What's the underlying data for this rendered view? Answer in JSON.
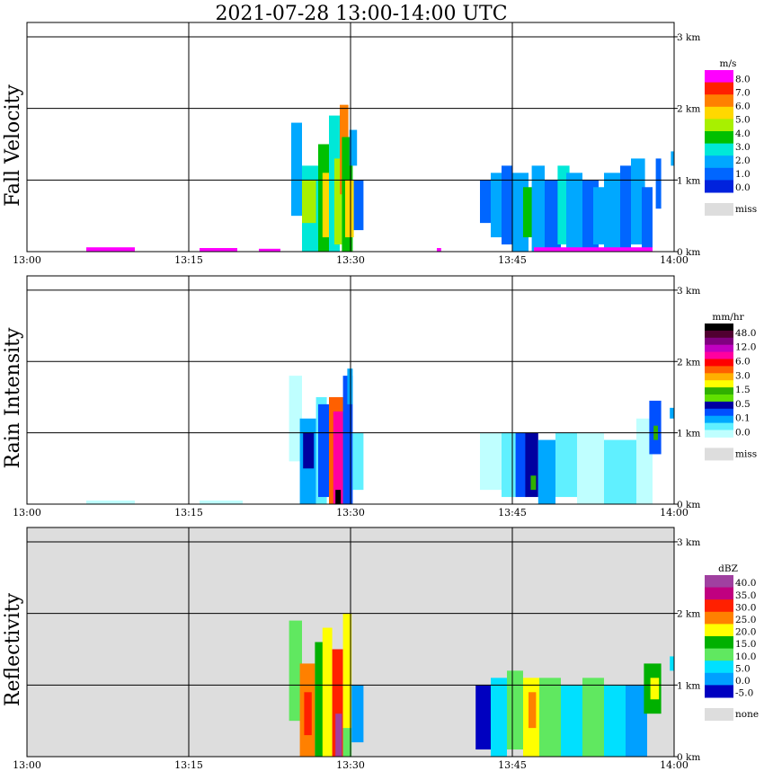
{
  "title": "2021-07-28   13:00-14:00 UTC",
  "colors": {
    "fall": [
      "#0022dd",
      "#0066ff",
      "#00a8ff",
      "#00e8d8",
      "#00c000",
      "#a8f000",
      "#ffd800",
      "#ff8000",
      "#ff2000",
      "#ff00ff"
    ],
    "rain": [
      "#bfffff",
      "#60f0ff",
      "#00a8ff",
      "#0050ff",
      "#0000a0",
      "#60e000",
      "#30b000",
      "#ffff00",
      "#ffb000",
      "#ff6000",
      "#ff0000",
      "#ff00a0",
      "#c000c0",
      "#800080",
      "#500030",
      "#000000"
    ],
    "refl": [
      "#0000c0",
      "#00a0ff",
      "#00e0ff",
      "#60e860",
      "#00b000",
      "#ffff00",
      "#ff8000",
      "#ff2000",
      "#c00080",
      "#a040a0"
    ],
    "miss": "#dddddd"
  },
  "chart_data": [
    {
      "type": "heatmap",
      "name": "fall",
      "ylabel": "Fall Velocity",
      "xlabel": "",
      "x_range_minutes": [
        0,
        60
      ],
      "ylim_km": [
        0,
        3.2
      ],
      "xticks": [
        "13:00",
        "13:15",
        "13:30",
        "13:45",
        "14:00"
      ],
      "yticks": [
        "0 km",
        "1 km",
        "2 km",
        "3 km"
      ],
      "legend_unit": "m/s",
      "legend_labels": [
        "8.0",
        "7.0",
        "6.0",
        "5.0",
        "4.0",
        "3.0",
        "2.0",
        "1.0",
        "0.0"
      ],
      "miss_label": "miss",
      "background": "white",
      "cells": [
        {
          "t": [
            24.5,
            25.5
          ],
          "h": [
            0.5,
            1.8
          ],
          "c": 2
        },
        {
          "t": [
            25.5,
            27
          ],
          "h": [
            0,
            1.2
          ],
          "c": 3
        },
        {
          "t": [
            25.5,
            26.8
          ],
          "h": [
            0.4,
            1.0
          ],
          "c": 5
        },
        {
          "t": [
            27,
            28
          ],
          "h": [
            0,
            1.5
          ],
          "c": 4
        },
        {
          "t": [
            27.4,
            28.4
          ],
          "h": [
            0.2,
            1.1
          ],
          "c": 6
        },
        {
          "t": [
            28,
            29
          ],
          "h": [
            0,
            1.9
          ],
          "c": 3
        },
        {
          "t": [
            28.5,
            29.2
          ],
          "h": [
            0.1,
            1.3
          ],
          "c": 5
        },
        {
          "t": [
            29,
            29.8
          ],
          "h": [
            0.8,
            2.05
          ],
          "c": 7
        },
        {
          "t": [
            29.2,
            30.2
          ],
          "h": [
            0,
            1.6
          ],
          "c": 4
        },
        {
          "t": [
            29.5,
            30.3
          ],
          "h": [
            0.2,
            1.0
          ],
          "c": 6
        },
        {
          "t": [
            30.3,
            31.2
          ],
          "h": [
            0.3,
            1.0
          ],
          "c": 1
        },
        {
          "t": [
            29.9,
            30.6
          ],
          "h": [
            1.2,
            1.7
          ],
          "c": 2
        },
        {
          "t": [
            42,
            43
          ],
          "h": [
            0.4,
            1.0
          ],
          "c": 1
        },
        {
          "t": [
            43,
            44
          ],
          "h": [
            0.2,
            1.1
          ],
          "c": 2
        },
        {
          "t": [
            44,
            45
          ],
          "h": [
            0.1,
            1.2
          ],
          "c": 1
        },
        {
          "t": [
            45,
            46.5
          ],
          "h": [
            0,
            1.1
          ],
          "c": 2
        },
        {
          "t": [
            46,
            47
          ],
          "h": [
            0.2,
            0.9
          ],
          "c": 4
        },
        {
          "t": [
            46.8,
            48
          ],
          "h": [
            0,
            1.2
          ],
          "c": 2
        },
        {
          "t": [
            48,
            49.5
          ],
          "h": [
            0,
            1.0
          ],
          "c": 1
        },
        {
          "t": [
            49.2,
            50.3
          ],
          "h": [
            0.1,
            1.2
          ],
          "c": 3
        },
        {
          "t": [
            50,
            51.5
          ],
          "h": [
            0,
            1.1
          ],
          "c": 2
        },
        {
          "t": [
            51.5,
            53
          ],
          "h": [
            0,
            1.0
          ],
          "c": 1
        },
        {
          "t": [
            52.5,
            53.6
          ],
          "h": [
            0.1,
            0.9
          ],
          "c": 2
        },
        {
          "t": [
            53.5,
            55
          ],
          "h": [
            0,
            1.1
          ],
          "c": 2
        },
        {
          "t": [
            55,
            56
          ],
          "h": [
            0,
            1.2
          ],
          "c": 1
        },
        {
          "t": [
            56,
            57.3
          ],
          "h": [
            0.1,
            1.3
          ],
          "c": 2
        },
        {
          "t": [
            57,
            58
          ],
          "h": [
            0,
            0.9
          ],
          "c": 1
        },
        {
          "t": [
            58.3,
            58.8
          ],
          "h": [
            0.6,
            1.3
          ],
          "c": 1
        },
        {
          "t": [
            59.7,
            60
          ],
          "h": [
            1.2,
            1.4
          ],
          "c": 2
        },
        {
          "t": [
            5.5,
            10
          ],
          "h": [
            0,
            0.06
          ],
          "c": 9
        },
        {
          "t": [
            16,
            19.5
          ],
          "h": [
            0,
            0.05
          ],
          "c": 9
        },
        {
          "t": [
            21.5,
            23.5
          ],
          "h": [
            0,
            0.04
          ],
          "c": 9
        },
        {
          "t": [
            38,
            38.4
          ],
          "h": [
            0,
            0.05
          ],
          "c": 9
        },
        {
          "t": [
            47,
            58
          ],
          "h": [
            0,
            0.06
          ],
          "c": 9
        }
      ]
    },
    {
      "type": "heatmap",
      "name": "rain",
      "ylabel": "Rain Intensity",
      "xlabel": "",
      "x_range_minutes": [
        0,
        60
      ],
      "ylim_km": [
        0,
        3.2
      ],
      "xticks": [
        "13:00",
        "13:15",
        "13:30",
        "13:45",
        "14:00"
      ],
      "yticks": [
        "0 km",
        "1 km",
        "2 km",
        "3 km"
      ],
      "legend_unit": "mm/hr",
      "legend_labels": [
        "48.0",
        "12.0",
        "6.0",
        "3.0",
        "1.5",
        "0.5",
        "0.1",
        "0.0"
      ],
      "miss_label": "miss",
      "background": "white",
      "cells": [
        {
          "t": [
            24.3,
            25.5
          ],
          "h": [
            0.6,
            1.8
          ],
          "c": 0
        },
        {
          "t": [
            25.3,
            26.8
          ],
          "h": [
            0,
            1.2
          ],
          "c": 2
        },
        {
          "t": [
            25.6,
            26.6
          ],
          "h": [
            0.5,
            1.0
          ],
          "c": 4
        },
        {
          "t": [
            26.8,
            27.8
          ],
          "h": [
            0,
            1.5
          ],
          "c": 1
        },
        {
          "t": [
            27,
            28.3
          ],
          "h": [
            0.1,
            1.4
          ],
          "c": 3
        },
        {
          "t": [
            28,
            29.6
          ],
          "h": [
            0,
            1.5
          ],
          "c": 9
        },
        {
          "t": [
            28.4,
            29.3
          ],
          "h": [
            0,
            1.3
          ],
          "c": 11
        },
        {
          "t": [
            28.6,
            29.1
          ],
          "h": [
            0,
            0.2
          ],
          "c": 15
        },
        {
          "t": [
            29.3,
            30.2
          ],
          "h": [
            0,
            1.8
          ],
          "c": 3
        },
        {
          "t": [
            30.2,
            31.2
          ],
          "h": [
            0.2,
            1.0
          ],
          "c": 1
        },
        {
          "t": [
            29.7,
            30.2
          ],
          "h": [
            1.4,
            1.9
          ],
          "c": 2
        },
        {
          "t": [
            42,
            44
          ],
          "h": [
            0.2,
            1.0
          ],
          "c": 0
        },
        {
          "t": [
            44,
            45.5
          ],
          "h": [
            0.1,
            1.0
          ],
          "c": 1
        },
        {
          "t": [
            45.3,
            46.3
          ],
          "h": [
            0.1,
            1.0
          ],
          "c": 3
        },
        {
          "t": [
            46.2,
            47.4
          ],
          "h": [
            0.1,
            1.0
          ],
          "c": 4
        },
        {
          "t": [
            46.7,
            47.2
          ],
          "h": [
            0.2,
            0.4
          ],
          "c": 6
        },
        {
          "t": [
            47.4,
            49
          ],
          "h": [
            0,
            0.9
          ],
          "c": 2
        },
        {
          "t": [
            49,
            51
          ],
          "h": [
            0.1,
            1.0
          ],
          "c": 1
        },
        {
          "t": [
            51,
            53.5
          ],
          "h": [
            0,
            1.0
          ],
          "c": 0
        },
        {
          "t": [
            53.5,
            56.5
          ],
          "h": [
            0,
            0.9
          ],
          "c": 1
        },
        {
          "t": [
            56.5,
            58
          ],
          "h": [
            0,
            1.2
          ],
          "c": 0
        },
        {
          "t": [
            57.7,
            58.8
          ],
          "h": [
            0.7,
            1.45
          ],
          "c": 3
        },
        {
          "t": [
            58.1,
            58.5
          ],
          "h": [
            0.9,
            1.1
          ],
          "c": 6
        },
        {
          "t": [
            59.6,
            60
          ],
          "h": [
            1.2,
            1.35
          ],
          "c": 2
        },
        {
          "t": [
            5.5,
            10
          ],
          "h": [
            0,
            0.05
          ],
          "c": 0
        },
        {
          "t": [
            16,
            20
          ],
          "h": [
            0,
            0.05
          ],
          "c": 0
        }
      ]
    },
    {
      "type": "heatmap",
      "name": "refl",
      "ylabel": "Reflectivity",
      "xlabel": "",
      "x_range_minutes": [
        0,
        60
      ],
      "ylim_km": [
        0,
        3.2
      ],
      "xticks": [
        "13:00",
        "13:15",
        "13:30",
        "13:45",
        "14:00"
      ],
      "yticks": [
        "0 km",
        "1 km",
        "2 km",
        "3 km"
      ],
      "legend_unit": "dBZ",
      "legend_labels": [
        "40.0",
        "35.0",
        "30.0",
        "25.0",
        "20.0",
        "15.0",
        "10.0",
        "5.0",
        "0.0",
        "-5.0"
      ],
      "miss_label": "none",
      "background": "grey",
      "cells": [
        {
          "t": [
            24.3,
            25.5
          ],
          "h": [
            0.5,
            1.9
          ],
          "c": 3
        },
        {
          "t": [
            25.3,
            26.7
          ],
          "h": [
            0,
            1.3
          ],
          "c": 6
        },
        {
          "t": [
            25.7,
            26.4
          ],
          "h": [
            0.3,
            0.9
          ],
          "c": 7
        },
        {
          "t": [
            26.7,
            27.6
          ],
          "h": [
            0,
            1.6
          ],
          "c": 4
        },
        {
          "t": [
            27.4,
            28.3
          ],
          "h": [
            0,
            1.8
          ],
          "c": 5
        },
        {
          "t": [
            28.3,
            29.3
          ],
          "h": [
            0,
            1.5
          ],
          "c": 7
        },
        {
          "t": [
            28.6,
            29.2
          ],
          "h": [
            0,
            0.6
          ],
          "c": 9
        },
        {
          "t": [
            29.3,
            30.1
          ],
          "h": [
            0.4,
            2.0
          ],
          "c": 5
        },
        {
          "t": [
            29.3,
            30.1
          ],
          "h": [
            0,
            0.4
          ],
          "c": 3
        },
        {
          "t": [
            30.1,
            31.2
          ],
          "h": [
            0.2,
            1.0
          ],
          "c": 1
        },
        {
          "t": [
            41.6,
            43
          ],
          "h": [
            0.1,
            1.0
          ],
          "c": 0
        },
        {
          "t": [
            43,
            44.5
          ],
          "h": [
            0,
            1.1
          ],
          "c": 2
        },
        {
          "t": [
            44.5,
            46
          ],
          "h": [
            0.1,
            1.2
          ],
          "c": 3
        },
        {
          "t": [
            46,
            47.5
          ],
          "h": [
            0,
            1.1
          ],
          "c": 5
        },
        {
          "t": [
            46.5,
            47.2
          ],
          "h": [
            0.4,
            0.9
          ],
          "c": 6
        },
        {
          "t": [
            47.5,
            49.5
          ],
          "h": [
            0,
            1.1
          ],
          "c": 3
        },
        {
          "t": [
            49.5,
            51.5
          ],
          "h": [
            0,
            1.0
          ],
          "c": 2
        },
        {
          "t": [
            51.5,
            53.5
          ],
          "h": [
            0,
            1.1
          ],
          "c": 3
        },
        {
          "t": [
            53.5,
            55.5
          ],
          "h": [
            0,
            1.0
          ],
          "c": 2
        },
        {
          "t": [
            55.5,
            57.5
          ],
          "h": [
            0,
            1.0
          ],
          "c": 1
        },
        {
          "t": [
            57.2,
            58.8
          ],
          "h": [
            0.6,
            1.3
          ],
          "c": 4
        },
        {
          "t": [
            57.8,
            58.6
          ],
          "h": [
            0.8,
            1.1
          ],
          "c": 5
        },
        {
          "t": [
            59.6,
            60
          ],
          "h": [
            1.2,
            1.4
          ],
          "c": 2
        }
      ]
    }
  ]
}
